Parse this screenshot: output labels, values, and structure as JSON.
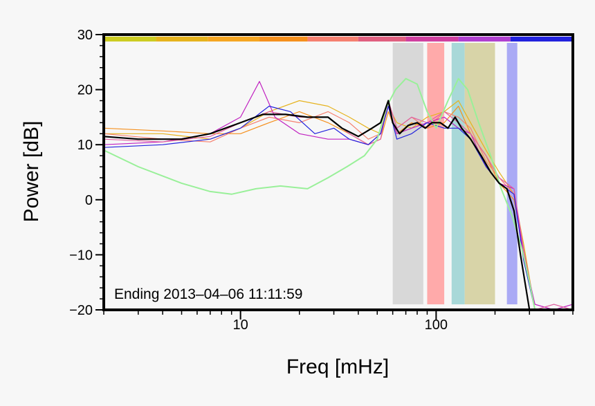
{
  "chart_data": {
    "type": "line",
    "xlabel": "Freq [mHz]",
    "ylabel": "Power [dB]",
    "xscale": "log",
    "xlim": [
      2,
      500
    ],
    "ylim": [
      -20,
      30
    ],
    "x_ticks": [
      10,
      100
    ],
    "x_tick_labels": [
      "10",
      "100"
    ],
    "y_ticks": [
      -20,
      -10,
      0,
      10,
      20,
      30
    ],
    "y_tick_labels": [
      "−20",
      "−10",
      "0",
      "10",
      "20",
      "30"
    ],
    "annotation": "Ending 2013–04–06 11:11:59",
    "grid": false,
    "top_color_bar": [
      {
        "from": 2,
        "to": 3.7,
        "color": "#cccc22"
      },
      {
        "from": 3.7,
        "to": 6.8,
        "color": "#e6b31e"
      },
      {
        "from": 6.8,
        "to": 12.5,
        "color": "#f5a623"
      },
      {
        "from": 12.5,
        "to": 22,
        "color": "#f5901e"
      },
      {
        "from": 22,
        "to": 40,
        "color": "#f58070"
      },
      {
        "from": 40,
        "to": 70,
        "color": "#e06080"
      },
      {
        "from": 70,
        "to": 130,
        "color": "#d040a0"
      },
      {
        "from": 130,
        "to": 240,
        "color": "#b040d0"
      },
      {
        "from": 240,
        "to": 500,
        "color": "#2222dd"
      }
    ],
    "bands": [
      {
        "from": 60,
        "to": 86,
        "color": "#d8d8d8"
      },
      {
        "from": 90,
        "to": 110,
        "color": "#ffaaaa"
      },
      {
        "from": 120,
        "to": 140,
        "color": "#a8d8d8"
      },
      {
        "from": 140,
        "to": 200,
        "color": "#d8d4a8"
      },
      {
        "from": 230,
        "to": 260,
        "color": "#aaaaf5"
      }
    ],
    "series": [
      {
        "color": "#000000",
        "width": 2.2,
        "x": [
          2,
          3,
          5,
          7,
          10,
          13,
          17,
          22,
          28,
          33,
          40,
          47,
          52,
          57,
          60,
          65,
          72,
          80,
          88,
          95,
          105,
          115,
          125,
          135,
          150,
          170,
          190,
          210,
          230,
          250,
          270,
          300,
          320
        ],
        "y": [
          11.5,
          11,
          11,
          12,
          14,
          15.5,
          15.5,
          15,
          15,
          13,
          11.5,
          13,
          14,
          18,
          14,
          12,
          13.5,
          14,
          13,
          14,
          14,
          13,
          15,
          13,
          11,
          8,
          5,
          3,
          2,
          -2,
          -10,
          -20,
          -21
        ]
      },
      {
        "color": "#e6b31e",
        "width": 1.2,
        "x": [
          2,
          4,
          7,
          10,
          14,
          20,
          28,
          36,
          45,
          52,
          57,
          63,
          75,
          90,
          110,
          130,
          150,
          180,
          210,
          250,
          280,
          320
        ],
        "y": [
          12,
          12,
          11,
          13,
          16,
          18,
          17,
          15,
          13,
          12,
          17,
          14,
          13,
          15,
          16,
          18,
          14,
          9,
          5,
          1,
          -8,
          -20
        ]
      },
      {
        "color": "#f5901e",
        "width": 1.2,
        "x": [
          2,
          4,
          7,
          10,
          14,
          20,
          28,
          36,
          45,
          52,
          57,
          63,
          75,
          90,
          110,
          130,
          150,
          180,
          210,
          250,
          280,
          320
        ],
        "y": [
          13,
          12.5,
          12,
          12,
          14,
          16,
          14,
          12,
          10,
          11,
          16,
          12,
          14,
          13,
          14,
          17,
          12,
          8,
          3,
          0,
          -9,
          -20
        ]
      },
      {
        "color": "#f58070",
        "width": 1.2,
        "x": [
          2,
          4,
          7,
          10,
          14,
          20,
          28,
          36,
          45,
          52,
          57,
          63,
          75,
          90,
          110,
          130,
          150,
          180,
          210,
          250,
          280,
          320
        ],
        "y": [
          12,
          11,
          10.5,
          13,
          15,
          14,
          16,
          14,
          11,
          12,
          18,
          13,
          15,
          13,
          16,
          15,
          13,
          7,
          4,
          1,
          -10,
          -20
        ]
      },
      {
        "color": "#c020c0",
        "width": 1.2,
        "x": [
          2,
          4,
          7,
          10,
          12.5,
          15,
          20,
          28,
          36,
          45,
          52,
          57,
          63,
          75,
          90,
          110,
          130,
          150,
          180,
          210,
          250,
          280,
          320,
          400,
          500
        ],
        "y": [
          10,
          10.5,
          12,
          15,
          21.5,
          15,
          12,
          11,
          11,
          10,
          12,
          17,
          12,
          13,
          14,
          15,
          13,
          12,
          6,
          3,
          2,
          -10,
          -19,
          -20,
          -19
        ]
      },
      {
        "color": "#e060a0",
        "width": 1.2,
        "x": [
          2,
          4,
          7,
          10,
          14,
          20,
          28,
          36,
          45,
          52,
          57,
          63,
          75,
          90,
          110,
          130,
          150,
          180,
          210,
          250,
          280,
          320,
          400,
          500
        ],
        "y": [
          11,
          10.5,
          11.5,
          14,
          16,
          15,
          15,
          12,
          10,
          11,
          18,
          13,
          15,
          14,
          16,
          14,
          12,
          8,
          4,
          2,
          -9,
          -20,
          -19,
          -20
        ]
      },
      {
        "color": "#2222dd",
        "width": 1.2,
        "x": [
          2,
          4,
          7,
          10,
          14,
          18,
          24,
          30,
          36,
          45,
          52,
          57,
          63,
          75,
          90,
          110,
          130,
          150,
          180,
          210,
          250,
          280,
          320
        ],
        "y": [
          9.5,
          10,
          11,
          13,
          17,
          16,
          12,
          13,
          11,
          10,
          12,
          17,
          11,
          12,
          14,
          13,
          13,
          11,
          6,
          3,
          1,
          -11,
          -20
        ]
      },
      {
        "color": "#99f099",
        "width": 2,
        "x": [
          2,
          3,
          5,
          7,
          9,
          12,
          16,
          22,
          28,
          35,
          43,
          50,
          56,
          62,
          70,
          80,
          90,
          100,
          115,
          130,
          145,
          165,
          190,
          215,
          245,
          275,
          300,
          320
        ],
        "y": [
          9,
          6,
          3,
          1.5,
          1,
          2,
          2.5,
          2,
          4,
          6,
          8,
          11,
          17,
          20,
          22,
          21,
          16,
          13,
          18,
          22,
          20,
          14,
          8,
          2,
          -3,
          -9,
          -15,
          -20
        ]
      }
    ]
  }
}
